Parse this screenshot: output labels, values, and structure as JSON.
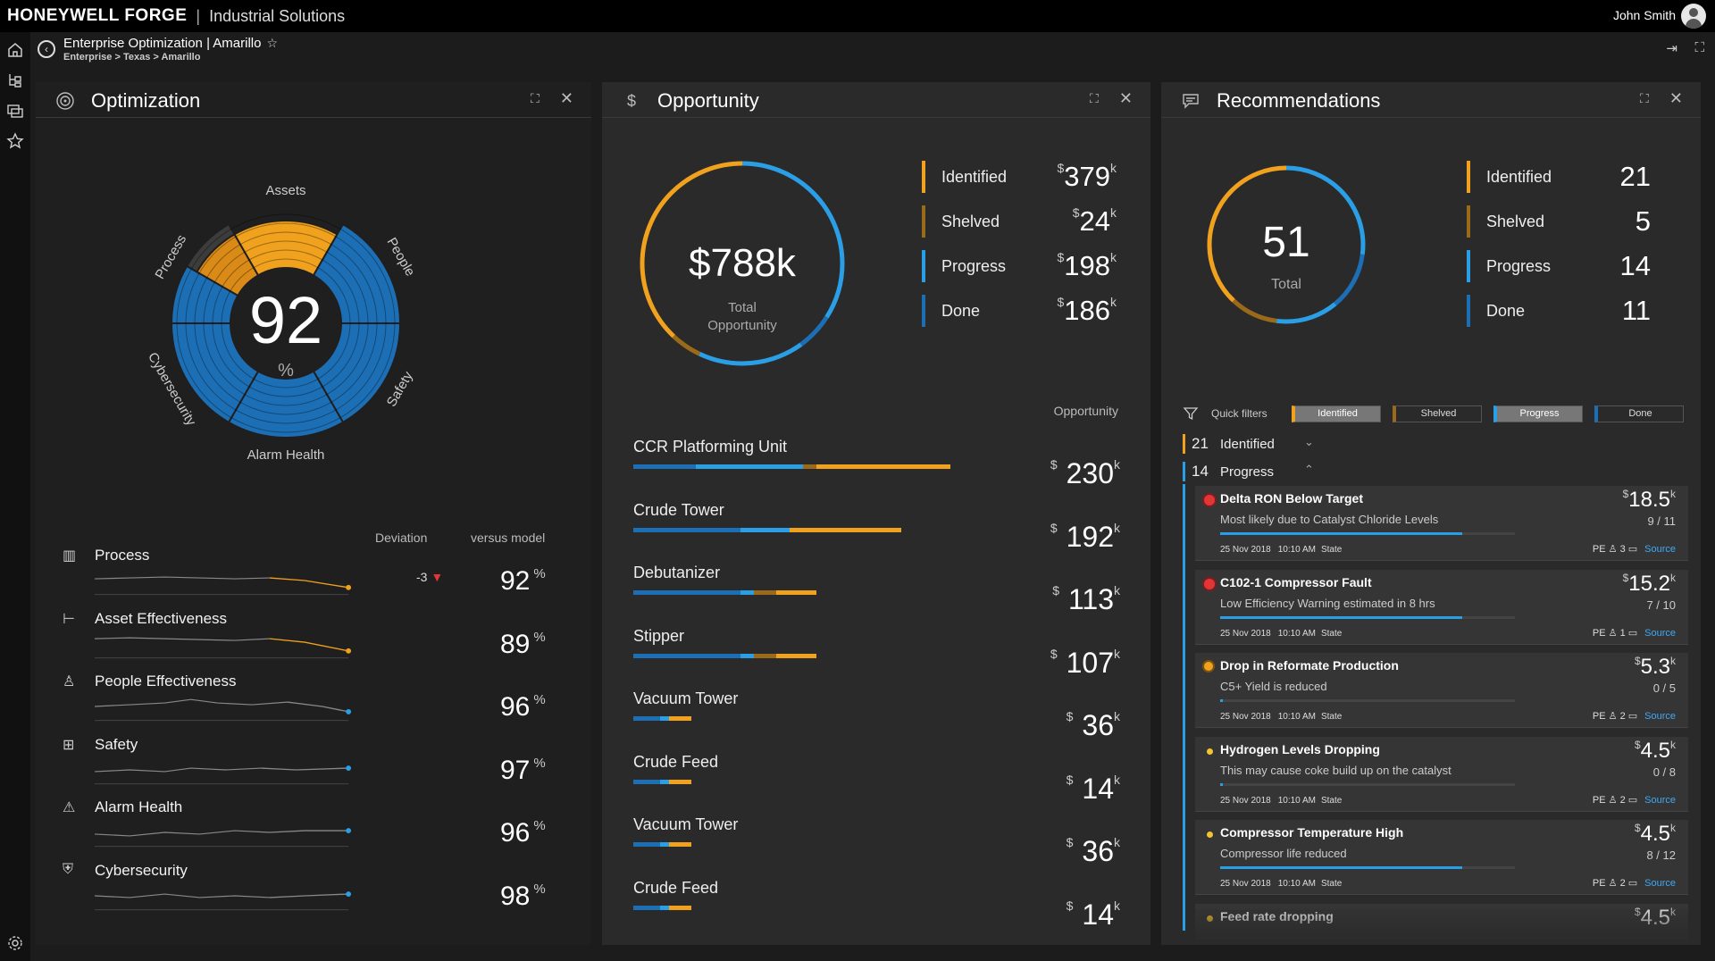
{
  "topbar": {
    "brand": "HONEYWELL FORGE",
    "separator": "|",
    "subtitle": "Industrial Solutions",
    "user": "John Smith"
  },
  "subheader": {
    "title": "Enterprise Optimization | Amarillo",
    "path": "Enterprise > Texas > Amarillo"
  },
  "optimization": {
    "title": "Optimization",
    "score": "92",
    "score_unit": "%",
    "wheel_labels": [
      "Assets",
      "People",
      "Safety",
      "Alarm Health",
      "Cybersecurity",
      "Process"
    ],
    "col_deviation": "Deviation",
    "col_versus": "versus model",
    "metrics": [
      {
        "label": "Process",
        "deviation": "-3",
        "value": "92",
        "unit": "%"
      },
      {
        "label": "Asset Effectiveness",
        "deviation": "",
        "value": "89",
        "unit": "%"
      },
      {
        "label": "People Effectiveness",
        "deviation": "",
        "value": "96",
        "unit": "%"
      },
      {
        "label": "Safety",
        "deviation": "",
        "value": "97",
        "unit": "%"
      },
      {
        "label": "Alarm Health",
        "deviation": "",
        "value": "96",
        "unit": "%"
      },
      {
        "label": "Cybersecurity",
        "deviation": "",
        "value": "98",
        "unit": "%"
      }
    ]
  },
  "opportunity": {
    "title": "Opportunity",
    "total": "$788k",
    "total_label_1": "Total",
    "total_label_2": "Opportunity",
    "legend": [
      {
        "label": "Identified",
        "value": "379"
      },
      {
        "label": "Shelved",
        "value": "24"
      },
      {
        "label": "Progress",
        "value": "198"
      },
      {
        "label": "Done",
        "value": "186"
      }
    ],
    "currency": "$",
    "suffix": "k",
    "column_label": "Opportunity",
    "units": [
      {
        "name": "CCR Platforming Unit",
        "value": "230"
      },
      {
        "name": "Crude Tower",
        "value": "192"
      },
      {
        "name": "Debutanizer",
        "value": "113"
      },
      {
        "name": "Stipper",
        "value": "107"
      },
      {
        "name": "Vacuum Tower",
        "value": "36"
      },
      {
        "name": "Crude Feed",
        "value": "14"
      },
      {
        "name": "Vacuum Tower",
        "value": "36"
      },
      {
        "name": "Crude Feed",
        "value": "14"
      }
    ]
  },
  "recommendations": {
    "title": "Recommendations",
    "total": "51",
    "total_label": "Total",
    "legend": [
      {
        "label": "Identified",
        "value": "21"
      },
      {
        "label": "Shelved",
        "value": "5"
      },
      {
        "label": "Progress",
        "value": "14"
      },
      {
        "label": "Done",
        "value": "11"
      }
    ],
    "quick_filters_label": "Quick filters",
    "quick_filters": [
      "Identified",
      "Shelved",
      "Progress",
      "Done"
    ],
    "groups": [
      {
        "count": "21",
        "label": "Identified"
      },
      {
        "count": "14",
        "label": "Progress"
      }
    ],
    "cards": [
      {
        "title": "Delta RON Below Target",
        "sub": "Most likely due to Catalyst Chloride Levels",
        "value": "18.5",
        "ratio": "9 / 11",
        "progress": 0.82,
        "status": "red",
        "date": "25 Nov 2018",
        "time": "10:10 AM",
        "state": "State",
        "pe": "PE",
        "comments": "3",
        "source": "Source"
      },
      {
        "title": "C102-1 Compressor Fault",
        "sub": "Low Efficiency Warning estimated in 8 hrs",
        "value": "15.2",
        "ratio": "7 / 10",
        "progress": 0.82,
        "status": "red",
        "date": "25 Nov 2018",
        "time": "10:10 AM",
        "state": "State",
        "pe": "PE",
        "comments": "1",
        "source": "Source"
      },
      {
        "title": "Drop in Reformate Production",
        "sub": "C5+ Yield is reduced",
        "value": "5.3",
        "ratio": "0 / 5",
        "progress": 0.0,
        "status": "orange",
        "date": "25 Nov 2018",
        "time": "10:10 AM",
        "state": "State",
        "pe": "PE",
        "comments": "2",
        "source": "Source"
      },
      {
        "title": "Hydrogen Levels Dropping",
        "sub": "This may cause coke build up on the catalyst",
        "value": "4.5",
        "ratio": "0 / 8",
        "progress": 0.0,
        "status": "yellow",
        "date": "25 Nov 2018",
        "time": "10:10 AM",
        "state": "State",
        "pe": "PE",
        "comments": "2",
        "source": "Source"
      },
      {
        "title": "Compressor Temperature High",
        "sub": "Compressor life reduced",
        "value": "4.5",
        "ratio": "8 / 12",
        "progress": 0.82,
        "status": "yellow",
        "date": "25 Nov 2018",
        "time": "10:10 AM",
        "state": "State",
        "pe": "PE",
        "comments": "2",
        "source": "Source"
      },
      {
        "title": "Feed rate dropping",
        "sub": "",
        "value": "4.5",
        "ratio": "",
        "progress": 0.0,
        "status": "yellow",
        "date": "",
        "time": "",
        "state": "",
        "pe": "",
        "comments": "",
        "source": ""
      }
    ]
  },
  "colors": {
    "orange": "#f0a11d",
    "blue": "#2b9fe6",
    "deep_blue": "#1d6fb5",
    "red": "#e23636",
    "yellow": "#f4c430",
    "dark_orange": "#d98a17"
  }
}
